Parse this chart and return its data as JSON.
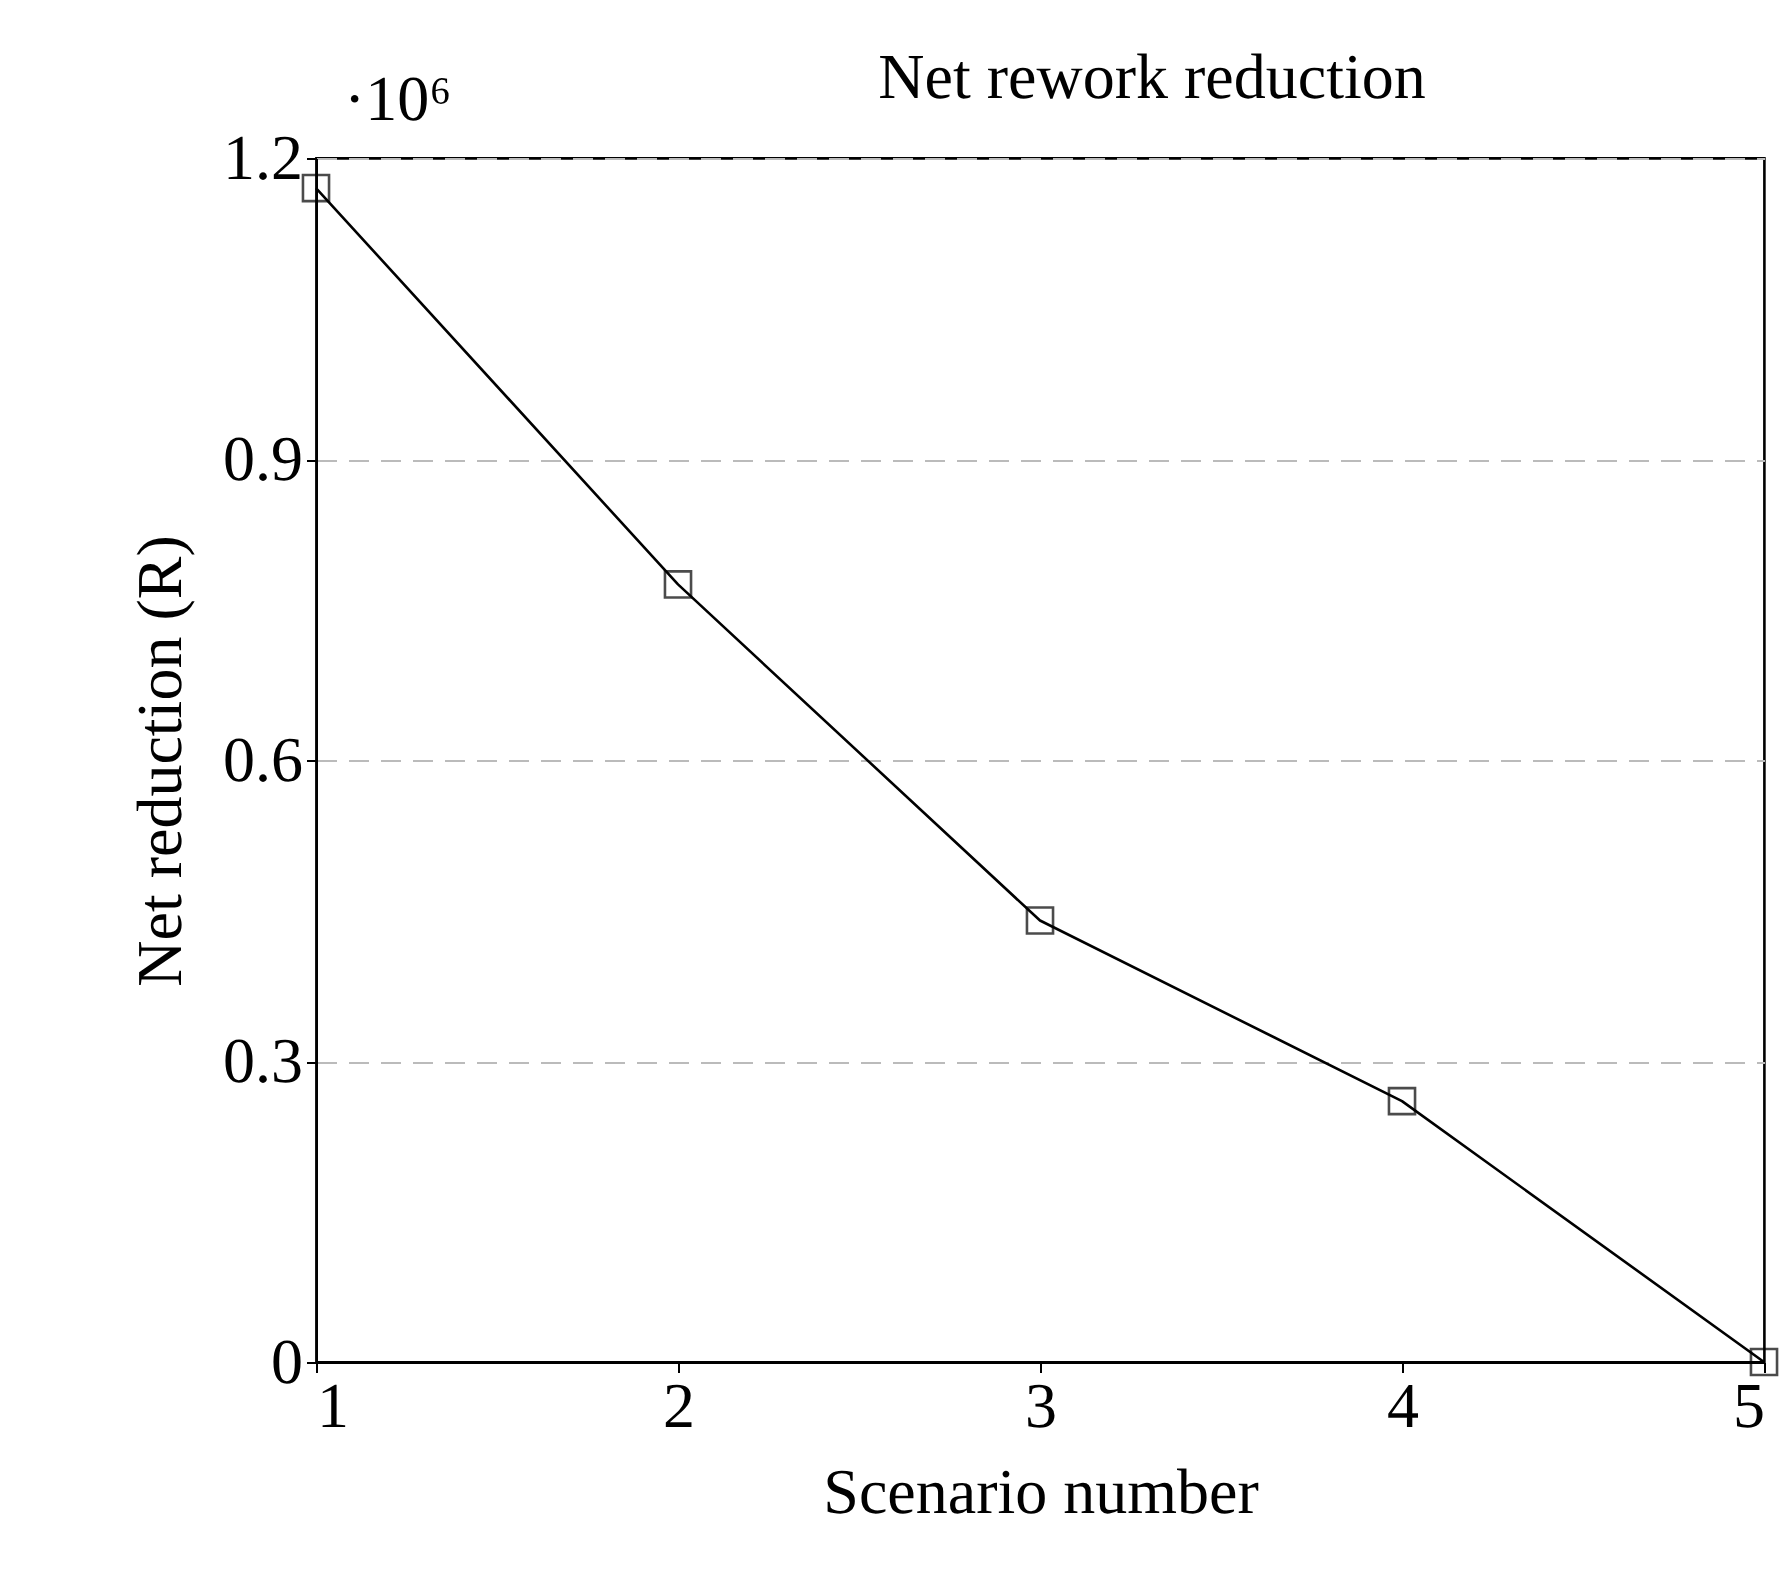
{
  "chart_data": {
    "type": "line",
    "title": "Net rework reduction",
    "xlabel": "Scenario number",
    "ylabel": "Net reduction (R)",
    "x": [
      1,
      2,
      3,
      4,
      5
    ],
    "series": [
      {
        "color": "#000000",
        "values": [
          1.17,
          0.775,
          0.44,
          0.26,
          0
        ]
      }
    ],
    "xlim": [
      1,
      5
    ],
    "xticks": [
      1,
      2,
      3,
      4,
      5
    ],
    "ylim": [
      0,
      1.2
    ],
    "yticks": [
      0,
      0.3,
      0.6,
      0.9,
      1.2
    ],
    "grid": "y",
    "marker": "square",
    "line_style": "solid",
    "annotations": [
      "·10⁶"
    ]
  }
}
